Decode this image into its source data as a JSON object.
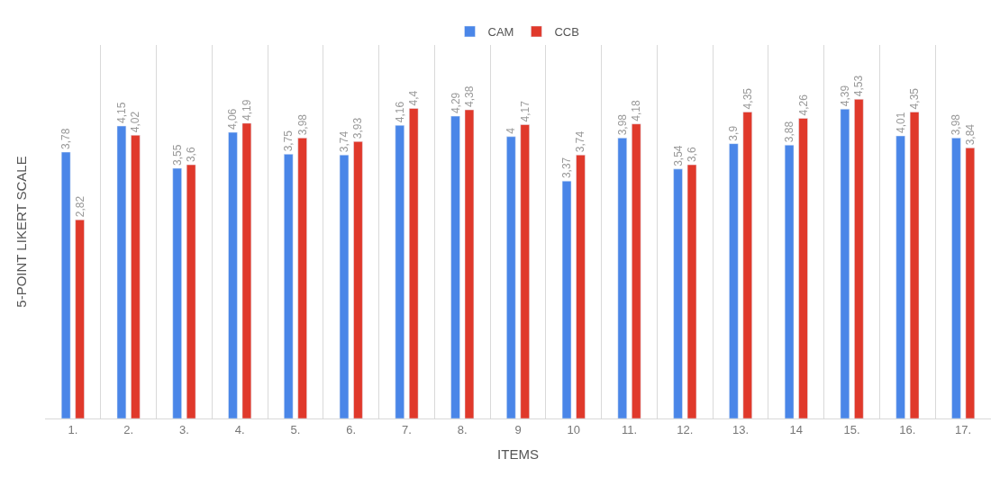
{
  "chart_data": {
    "type": "bar",
    "xlabel": "ITEMS",
    "ylabel": "5-POINT LIKERT SCALE",
    "categories": [
      "1.",
      "2.",
      "3.",
      "4.",
      "5.",
      "6.",
      "7.",
      "8.",
      "9",
      "10",
      "11.",
      "12.",
      "13.",
      "14",
      "15.",
      "16.",
      "17."
    ],
    "series": [
      {
        "name": "CAM",
        "color": "#4a86e8",
        "values": [
          3.78,
          4.15,
          3.55,
          4.06,
          3.75,
          3.74,
          4.16,
          4.29,
          4,
          3.37,
          3.98,
          3.54,
          3.9,
          3.88,
          4.39,
          4.01,
          3.98
        ],
        "value_labels": [
          "3,78",
          "4,15",
          "3,55",
          "4,06",
          "3,75",
          "3,74",
          "4,16",
          "4,29",
          "4",
          "3,37",
          "3,98",
          "3,54",
          "3,9",
          "3,88",
          "4,39",
          "4,01",
          "3,98"
        ]
      },
      {
        "name": "CCB",
        "color": "#e0392b",
        "values": [
          2.82,
          4.02,
          3.6,
          4.19,
          3.98,
          3.93,
          4.4,
          4.38,
          4.17,
          3.74,
          4.18,
          3.6,
          4.35,
          4.26,
          4.53,
          4.35,
          3.84
        ],
        "value_labels": [
          "2,82",
          "4,02",
          "3,6",
          "4,19",
          "3,98",
          "3,93",
          "4,4",
          "4,38",
          "4,17",
          "3,74",
          "4,18",
          "3,6",
          "4,35",
          "4,26",
          "4,53",
          "4,35",
          "3,84"
        ]
      }
    ],
    "grid": "x",
    "legend": "top",
    "tick_labels": "x"
  }
}
